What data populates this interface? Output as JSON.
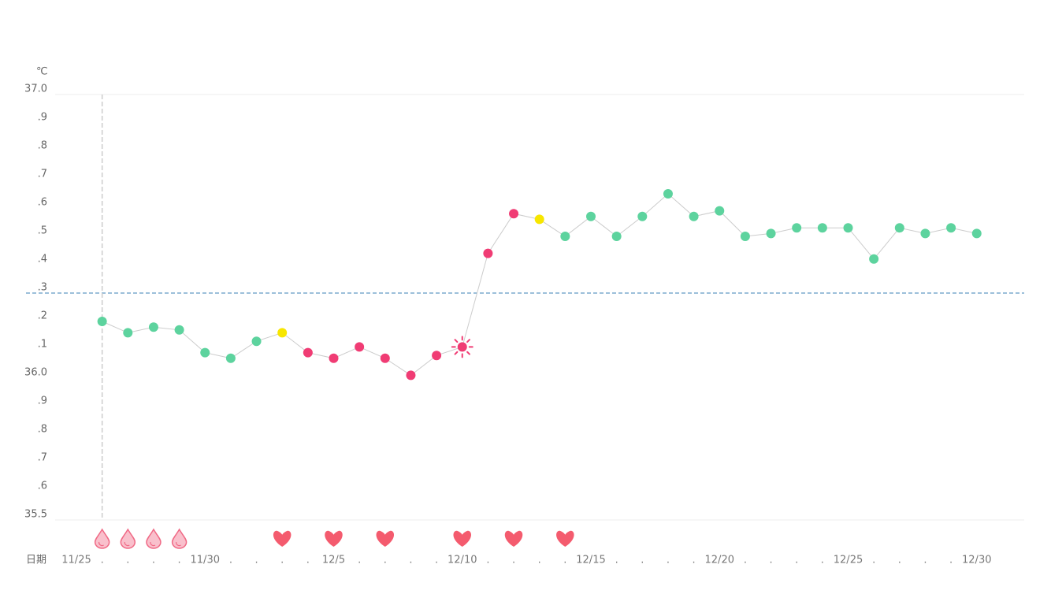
{
  "chart_data": {
    "type": "line",
    "y_unit": "℃",
    "x_label": "日期",
    "categories": [
      "11/25",
      ".",
      ".",
      ".",
      ".",
      "11/30",
      ".",
      ".",
      ".",
      ".",
      "12/5",
      ".",
      ".",
      ".",
      ".",
      "12/10",
      ".",
      ".",
      ".",
      ".",
      "12/15",
      ".",
      ".",
      ".",
      ".",
      "12/20",
      ".",
      ".",
      ".",
      ".",
      "12/25",
      ".",
      ".",
      ".",
      ".",
      "12/30"
    ],
    "values": [
      null,
      36.2,
      36.16,
      36.18,
      36.17,
      36.09,
      36.07,
      36.13,
      36.16,
      36.09,
      36.07,
      36.11,
      36.07,
      36.01,
      36.08,
      36.11,
      36.44,
      36.58,
      36.56,
      36.5,
      36.57,
      36.5,
      36.57,
      36.65,
      36.57,
      36.59,
      36.5,
      36.51,
      36.53,
      36.53,
      36.53,
      36.42,
      36.53,
      36.51,
      36.53,
      36.51
    ],
    "point_colors": [
      null,
      "#5dd39e",
      "#5dd39e",
      "#5dd39e",
      "#5dd39e",
      "#5dd39e",
      "#5dd39e",
      "#5dd39e",
      "#f7e600",
      "#f03c74",
      "#f03c74",
      "#f03c74",
      "#f03c74",
      "#f03c74",
      "#f03c74",
      "#f03c74",
      "#f03c74",
      "#f03c74",
      "#f7e600",
      "#5dd39e",
      "#5dd39e",
      "#5dd39e",
      "#5dd39e",
      "#5dd39e",
      "#5dd39e",
      "#5dd39e",
      "#5dd39e",
      "#5dd39e",
      "#5dd39e",
      "#5dd39e",
      "#5dd39e",
      "#5dd39e",
      "#5dd39e",
      "#5dd39e",
      "#5dd39e",
      "#5dd39e"
    ],
    "point_styles": [
      null,
      null,
      null,
      null,
      null,
      null,
      null,
      null,
      null,
      null,
      null,
      null,
      null,
      null,
      null,
      "sun",
      null,
      null,
      null,
      null,
      null,
      null,
      null,
      null,
      null,
      null,
      null,
      null,
      null,
      null,
      null,
      null,
      null,
      null,
      null,
      null
    ],
    "day_markers": [
      null,
      "drop",
      "drop",
      "drop",
      "drop",
      null,
      null,
      null,
      "heart",
      null,
      "heart",
      null,
      "heart",
      null,
      null,
      "heart",
      null,
      "heart",
      null,
      "heart",
      null,
      null,
      null,
      null,
      null,
      null,
      null,
      null,
      null,
      null,
      null,
      null,
      null,
      null,
      null,
      null
    ],
    "line_color": "#cccccc",
    "coverline": 36.3,
    "coverline_color": "#3a7fb5",
    "ylim": [
      35.5,
      37
    ],
    "yticks": [
      {
        "value": 37,
        "label": "37.0"
      },
      {
        "value": 36.9,
        "label": ".9"
      },
      {
        "value": 36.8,
        "label": ".8"
      },
      {
        "value": 36.7,
        "label": ".7"
      },
      {
        "value": 36.6,
        "label": ".6"
      },
      {
        "value": 36.5,
        "label": ".5"
      },
      {
        "value": 36.4,
        "label": ".4"
      },
      {
        "value": 36.3,
        "label": ".3"
      },
      {
        "value": 36.2,
        "label": ".2"
      },
      {
        "value": 36.1,
        "label": ".1"
      },
      {
        "value": 36,
        "label": "36.0"
      },
      {
        "value": 35.9,
        "label": ".9"
      },
      {
        "value": 35.8,
        "label": ".8"
      },
      {
        "value": 35.7,
        "label": ".7"
      },
      {
        "value": 35.6,
        "label": ".6"
      },
      35.5
    ],
    "grid": false
  }
}
